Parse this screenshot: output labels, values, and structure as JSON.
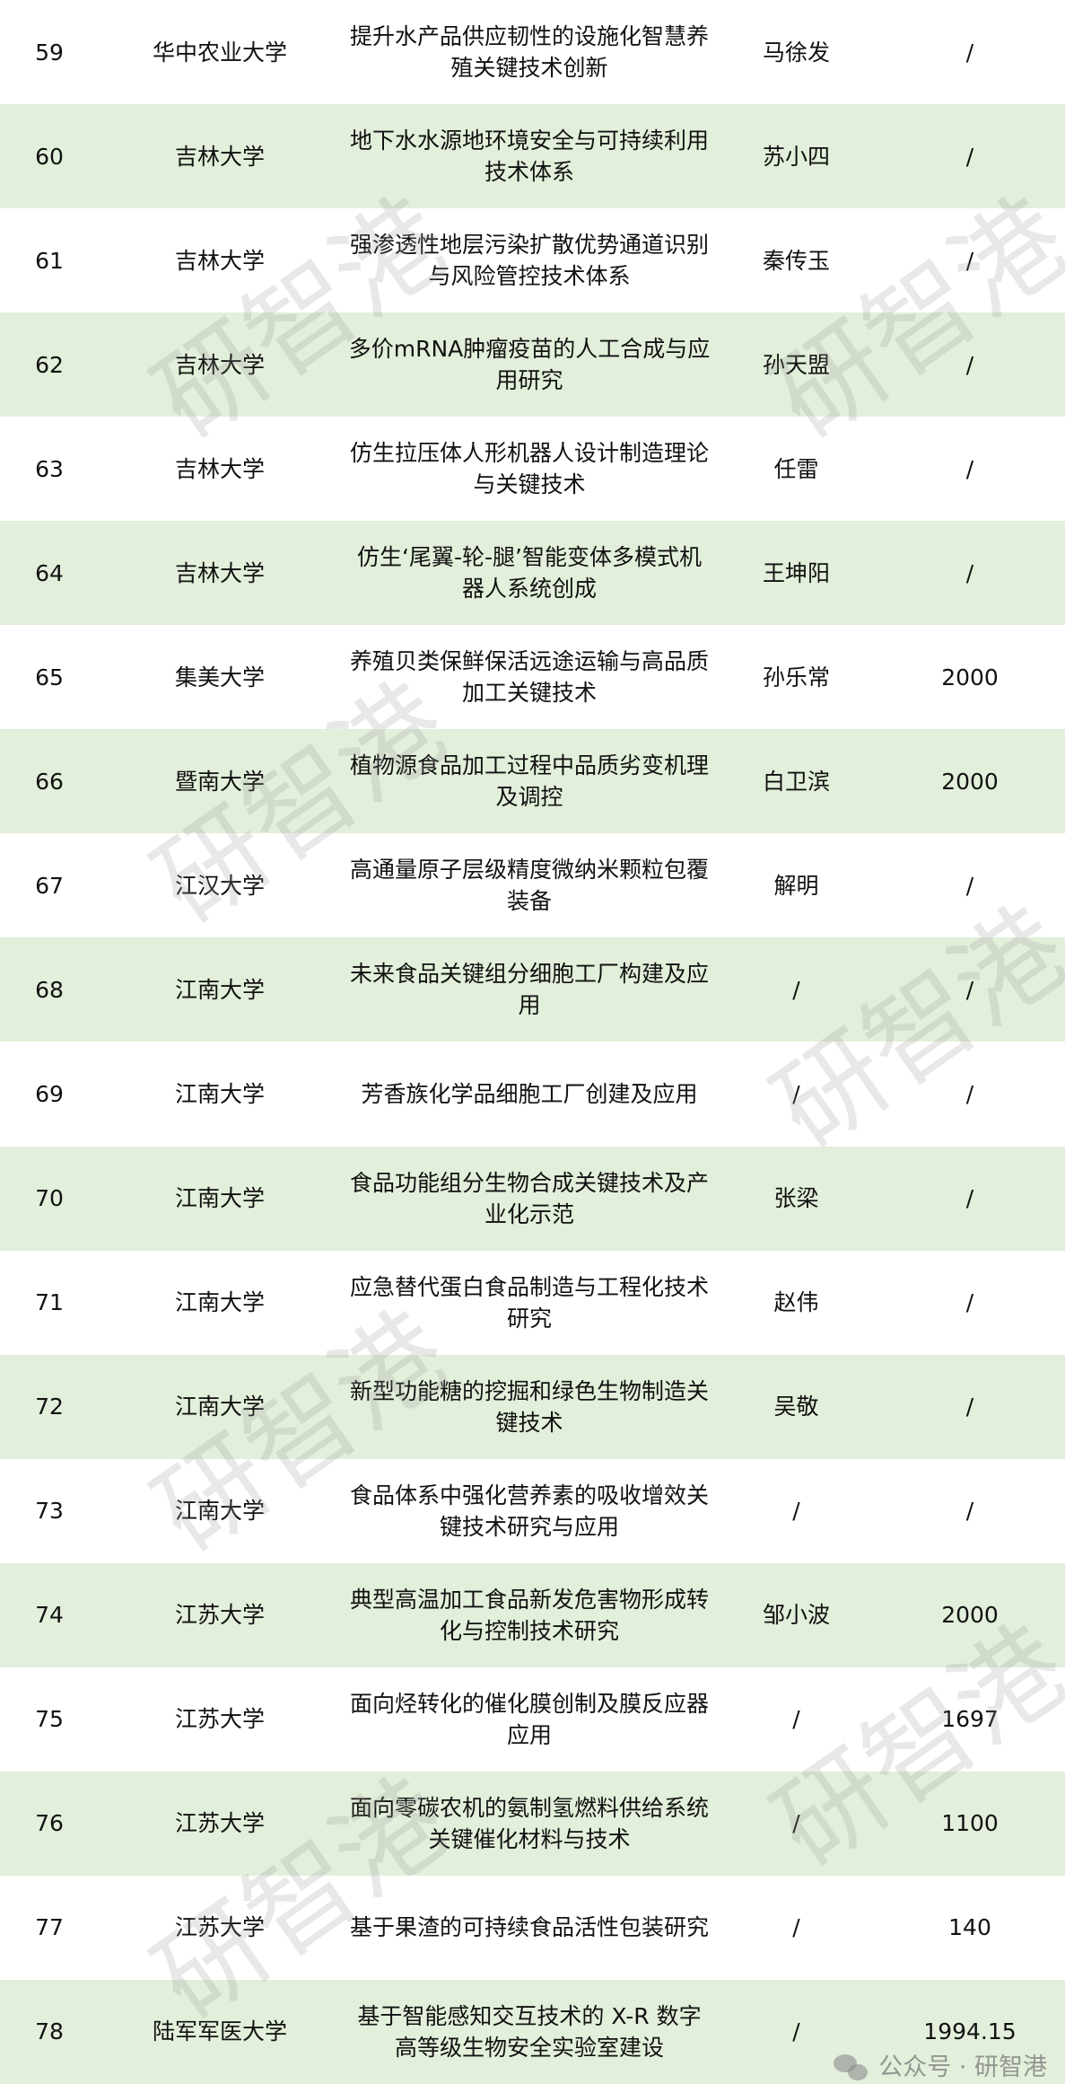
{
  "rows": [
    {
      "no": "59",
      "university": "华中农业大学",
      "project": "提升水产品供应韧性的设施化智慧养殖关键技术创新",
      "leader": "马徐发",
      "amount": "/"
    },
    {
      "no": "60",
      "university": "吉林大学",
      "project": "地下水水源地环境安全与可持续利用技术体系",
      "leader": "苏小四",
      "amount": "/"
    },
    {
      "no": "61",
      "university": "吉林大学",
      "project": "强渗透性地层污染扩散优势通道识别与风险管控技术体系",
      "leader": "秦传玉",
      "amount": "/"
    },
    {
      "no": "62",
      "university": "吉林大学",
      "project": "多价mRNA肿瘤疫苗的人工合成与应用研究",
      "leader": "孙天盟",
      "amount": "/"
    },
    {
      "no": "63",
      "university": "吉林大学",
      "project": "仿生拉压体人形机器人设计制造理论与关键技术",
      "leader": "任雷",
      "amount": "/"
    },
    {
      "no": "64",
      "university": "吉林大学",
      "project": "仿生‘尾翼-轮-腿’智能变体多模式机器人系统创成",
      "leader": "王坤阳",
      "amount": "/"
    },
    {
      "no": "65",
      "university": "集美大学",
      "project": "养殖贝类保鲜保活远途运输与高品质加工关键技术",
      "leader": "孙乐常",
      "amount": "2000"
    },
    {
      "no": "66",
      "university": "暨南大学",
      "project": "植物源食品加工过程中品质劣变机理及调控",
      "leader": "白卫滨",
      "amount": "2000"
    },
    {
      "no": "67",
      "university": "江汉大学",
      "project": "高通量原子层级精度微纳米颗粒包覆装备",
      "leader": "解明",
      "amount": "/"
    },
    {
      "no": "68",
      "university": "江南大学",
      "project": "未来食品关键组分细胞工厂构建及应用",
      "leader": "/",
      "amount": "/"
    },
    {
      "no": "69",
      "university": "江南大学",
      "project": "芳香族化学品细胞工厂创建及应用",
      "leader": "/",
      "amount": "/"
    },
    {
      "no": "70",
      "university": "江南大学",
      "project": "食品功能组分生物合成关键技术及产业化示范",
      "leader": "张梁",
      "amount": "/"
    },
    {
      "no": "71",
      "university": "江南大学",
      "project": "应急替代蛋白食品制造与工程化技术研究",
      "leader": "赵伟",
      "amount": "/"
    },
    {
      "no": "72",
      "university": "江南大学",
      "project": "新型功能糖的挖掘和绿色生物制造关键技术",
      "leader": "吴敬",
      "amount": "/"
    },
    {
      "no": "73",
      "university": "江南大学",
      "project": "食品体系中强化营养素的吸收增效关键技术研究与应用",
      "leader": "/",
      "amount": "/"
    },
    {
      "no": "74",
      "university": "江苏大学",
      "project": "典型高温加工食品新发危害物形成转化与控制技术研究",
      "leader": "邹小波",
      "amount": "2000"
    },
    {
      "no": "75",
      "university": "江苏大学",
      "project": "面向烃转化的催化膜创制及膜反应器应用",
      "leader": "/",
      "amount": "1697"
    },
    {
      "no": "76",
      "university": "江苏大学",
      "project": "面向零碳农机的氨制氢燃料供给系统关键催化材料与技术",
      "leader": "/",
      "amount": "1100"
    },
    {
      "no": "77",
      "university": "江苏大学",
      "project": "基于果渣的可持续食品活性包装研究",
      "leader": "/",
      "amount": "140"
    },
    {
      "no": "78",
      "university": "陆军军医大学",
      "project": "基于智能感知交互技术的 X-R 数字高等级生物安全实验室建设",
      "leader": "/",
      "amount": "1994.15"
    }
  ],
  "watermark": "研智港",
  "footer": {
    "label": "公众号 · 研智港",
    "icon": "wechat-icon"
  },
  "colors": {
    "alt_row": "#e2efda"
  }
}
